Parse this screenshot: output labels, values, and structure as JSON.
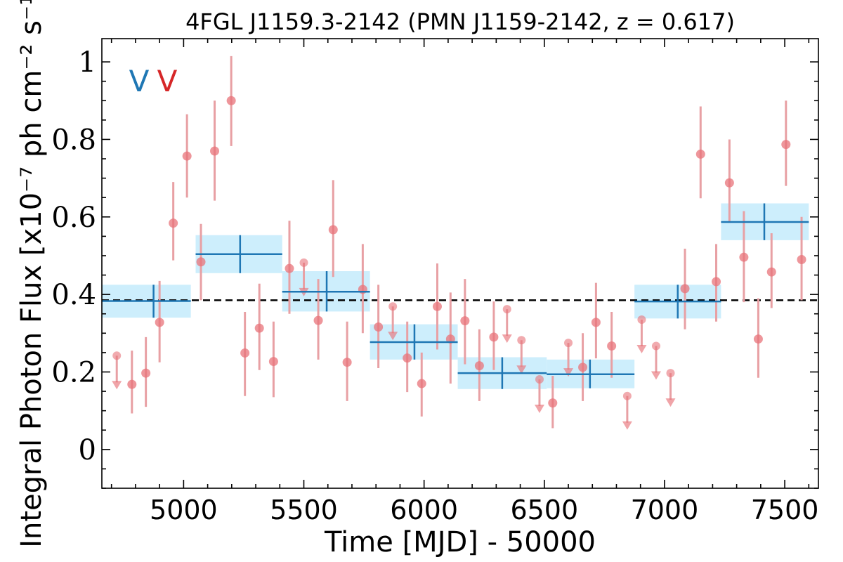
{
  "chart_data": {
    "type": "scatter",
    "title": "4FGL J1159.3-2142 (PMN J1159-2142, z = 0.617)",
    "xlabel": "Time [MJD] - 50000",
    "ylabel": "Integral Photon Flux [x10⁻⁷ ph cm⁻² s⁻¹]",
    "xlim": [
      4660,
      7640
    ],
    "ylim": [
      -0.1,
      1.06
    ],
    "xticks": [
      5000,
      5500,
      6000,
      6500,
      7000,
      7500
    ],
    "xtick_labels": [
      "5000",
      "5500",
      "6000",
      "6500",
      "7000",
      "7500"
    ],
    "yticks": [
      0,
      0.2,
      0.4,
      0.6,
      0.8,
      1.0
    ],
    "ytick_labels": [
      "0",
      "0.2",
      "0.4",
      "0.6",
      "0.8",
      "1"
    ],
    "mean_flux": 0.385,
    "legend": {
      "placement": "top-left",
      "entries": [
        {
          "text": "V",
          "color": "#1f77b4"
        },
        {
          "text": "V",
          "color": "#d62728"
        }
      ]
    },
    "colors": {
      "points": "#e8737a",
      "errorbars": "#e8a0a4",
      "bins": "#1f77b4",
      "bin_fill": "#cdeefc",
      "mean_line": "#000000"
    },
    "series": [
      {
        "kind": "detections",
        "points": [
          {
            "x": 4785,
            "y": 0.168,
            "lo": 0.093,
            "hi": 0.255
          },
          {
            "x": 4843,
            "y": 0.197,
            "lo": 0.11,
            "hi": 0.29
          },
          {
            "x": 4900,
            "y": 0.328,
            "lo": 0.225,
            "hi": 0.435
          },
          {
            "x": 4957,
            "y": 0.584,
            "lo": 0.488,
            "hi": 0.69
          },
          {
            "x": 5014,
            "y": 0.757,
            "lo": 0.65,
            "hi": 0.865
          },
          {
            "x": 5072,
            "y": 0.484,
            "lo": 0.385,
            "hi": 0.582
          },
          {
            "x": 5129,
            "y": 0.77,
            "lo": 0.642,
            "hi": 0.9
          },
          {
            "x": 5198,
            "y": 0.9,
            "lo": 0.783,
            "hi": 1.015
          },
          {
            "x": 5255,
            "y": 0.249,
            "lo": 0.138,
            "hi": 0.355
          },
          {
            "x": 5315,
            "y": 0.313,
            "lo": 0.205,
            "hi": 0.428
          },
          {
            "x": 5374,
            "y": 0.227,
            "lo": 0.135,
            "hi": 0.33
          },
          {
            "x": 5440,
            "y": 0.467,
            "lo": 0.35,
            "hi": 0.59
          },
          {
            "x": 5560,
            "y": 0.333,
            "lo": 0.232,
            "hi": 0.44
          },
          {
            "x": 5622,
            "y": 0.567,
            "lo": 0.445,
            "hi": 0.695
          },
          {
            "x": 5680,
            "y": 0.225,
            "lo": 0.125,
            "hi": 0.33
          },
          {
            "x": 5745,
            "y": 0.413,
            "lo": 0.3,
            "hi": 0.53
          },
          {
            "x": 5810,
            "y": 0.316,
            "lo": 0.21,
            "hi": 0.425
          },
          {
            "x": 5930,
            "y": 0.236,
            "lo": 0.148,
            "hi": 0.33
          },
          {
            "x": 5990,
            "y": 0.17,
            "lo": 0.085,
            "hi": 0.25
          },
          {
            "x": 6055,
            "y": 0.369,
            "lo": 0.258,
            "hi": 0.48
          },
          {
            "x": 6110,
            "y": 0.285,
            "lo": 0.17,
            "hi": 0.405
          },
          {
            "x": 6170,
            "y": 0.332,
            "lo": 0.22,
            "hi": 0.44
          },
          {
            "x": 6230,
            "y": 0.216,
            "lo": 0.125,
            "hi": 0.31
          },
          {
            "x": 6290,
            "y": 0.29,
            "lo": 0.205,
            "hi": 0.382
          },
          {
            "x": 6535,
            "y": 0.12,
            "lo": 0.055,
            "hi": 0.19
          },
          {
            "x": 6660,
            "y": 0.212,
            "lo": 0.125,
            "hi": 0.3
          },
          {
            "x": 6715,
            "y": 0.328,
            "lo": 0.235,
            "hi": 0.43
          },
          {
            "x": 6780,
            "y": 0.267,
            "lo": 0.185,
            "hi": 0.355
          },
          {
            "x": 7085,
            "y": 0.415,
            "lo": 0.31,
            "hi": 0.518
          },
          {
            "x": 7150,
            "y": 0.762,
            "lo": 0.648,
            "hi": 0.885
          },
          {
            "x": 7215,
            "y": 0.433,
            "lo": 0.33,
            "hi": 0.53
          },
          {
            "x": 7270,
            "y": 0.688,
            "lo": 0.585,
            "hi": 0.8
          },
          {
            "x": 7330,
            "y": 0.496,
            "lo": 0.38,
            "hi": 0.615
          },
          {
            "x": 7390,
            "y": 0.285,
            "lo": 0.185,
            "hi": 0.39
          },
          {
            "x": 7445,
            "y": 0.458,
            "lo": 0.365,
            "hi": 0.558
          },
          {
            "x": 7505,
            "y": 0.787,
            "lo": 0.68,
            "hi": 0.9
          },
          {
            "x": 7570,
            "y": 0.49,
            "lo": 0.385,
            "hi": 0.6
          }
        ]
      },
      {
        "kind": "upper_limits",
        "points": [
          {
            "x": 4722,
            "y": 0.242
          },
          {
            "x": 5500,
            "y": 0.482
          },
          {
            "x": 5870,
            "y": 0.369
          },
          {
            "x": 6345,
            "y": 0.362
          },
          {
            "x": 6405,
            "y": 0.282
          },
          {
            "x": 6480,
            "y": 0.181
          },
          {
            "x": 6600,
            "y": 0.275
          },
          {
            "x": 6845,
            "y": 0.138
          },
          {
            "x": 6905,
            "y": 0.335
          },
          {
            "x": 6965,
            "y": 0.267
          },
          {
            "x": 7025,
            "y": 0.197
          }
        ]
      },
      {
        "kind": "bayesian_blocks",
        "blocks": [
          {
            "x0": 4660,
            "x1": 5030,
            "y": 0.383,
            "lo": 0.34,
            "hi": 0.425,
            "center": 4875
          },
          {
            "x0": 5050,
            "x1": 5410,
            "y": 0.504,
            "lo": 0.455,
            "hi": 0.553,
            "center": 5235
          },
          {
            "x0": 5410,
            "x1": 5775,
            "y": 0.407,
            "lo": 0.356,
            "hi": 0.46,
            "center": 5595
          },
          {
            "x0": 5775,
            "x1": 6140,
            "y": 0.277,
            "lo": 0.232,
            "hi": 0.323,
            "center": 5960
          },
          {
            "x0": 6140,
            "x1": 6510,
            "y": 0.197,
            "lo": 0.156,
            "hi": 0.238,
            "center": 6325
          },
          {
            "x0": 6510,
            "x1": 6875,
            "y": 0.194,
            "lo": 0.158,
            "hi": 0.232,
            "center": 6690
          },
          {
            "x0": 6875,
            "x1": 7235,
            "y": 0.382,
            "lo": 0.338,
            "hi": 0.425,
            "center": 7055
          },
          {
            "x0": 7235,
            "x1": 7600,
            "y": 0.587,
            "lo": 0.54,
            "hi": 0.635,
            "center": 7415
          }
        ]
      }
    ]
  }
}
